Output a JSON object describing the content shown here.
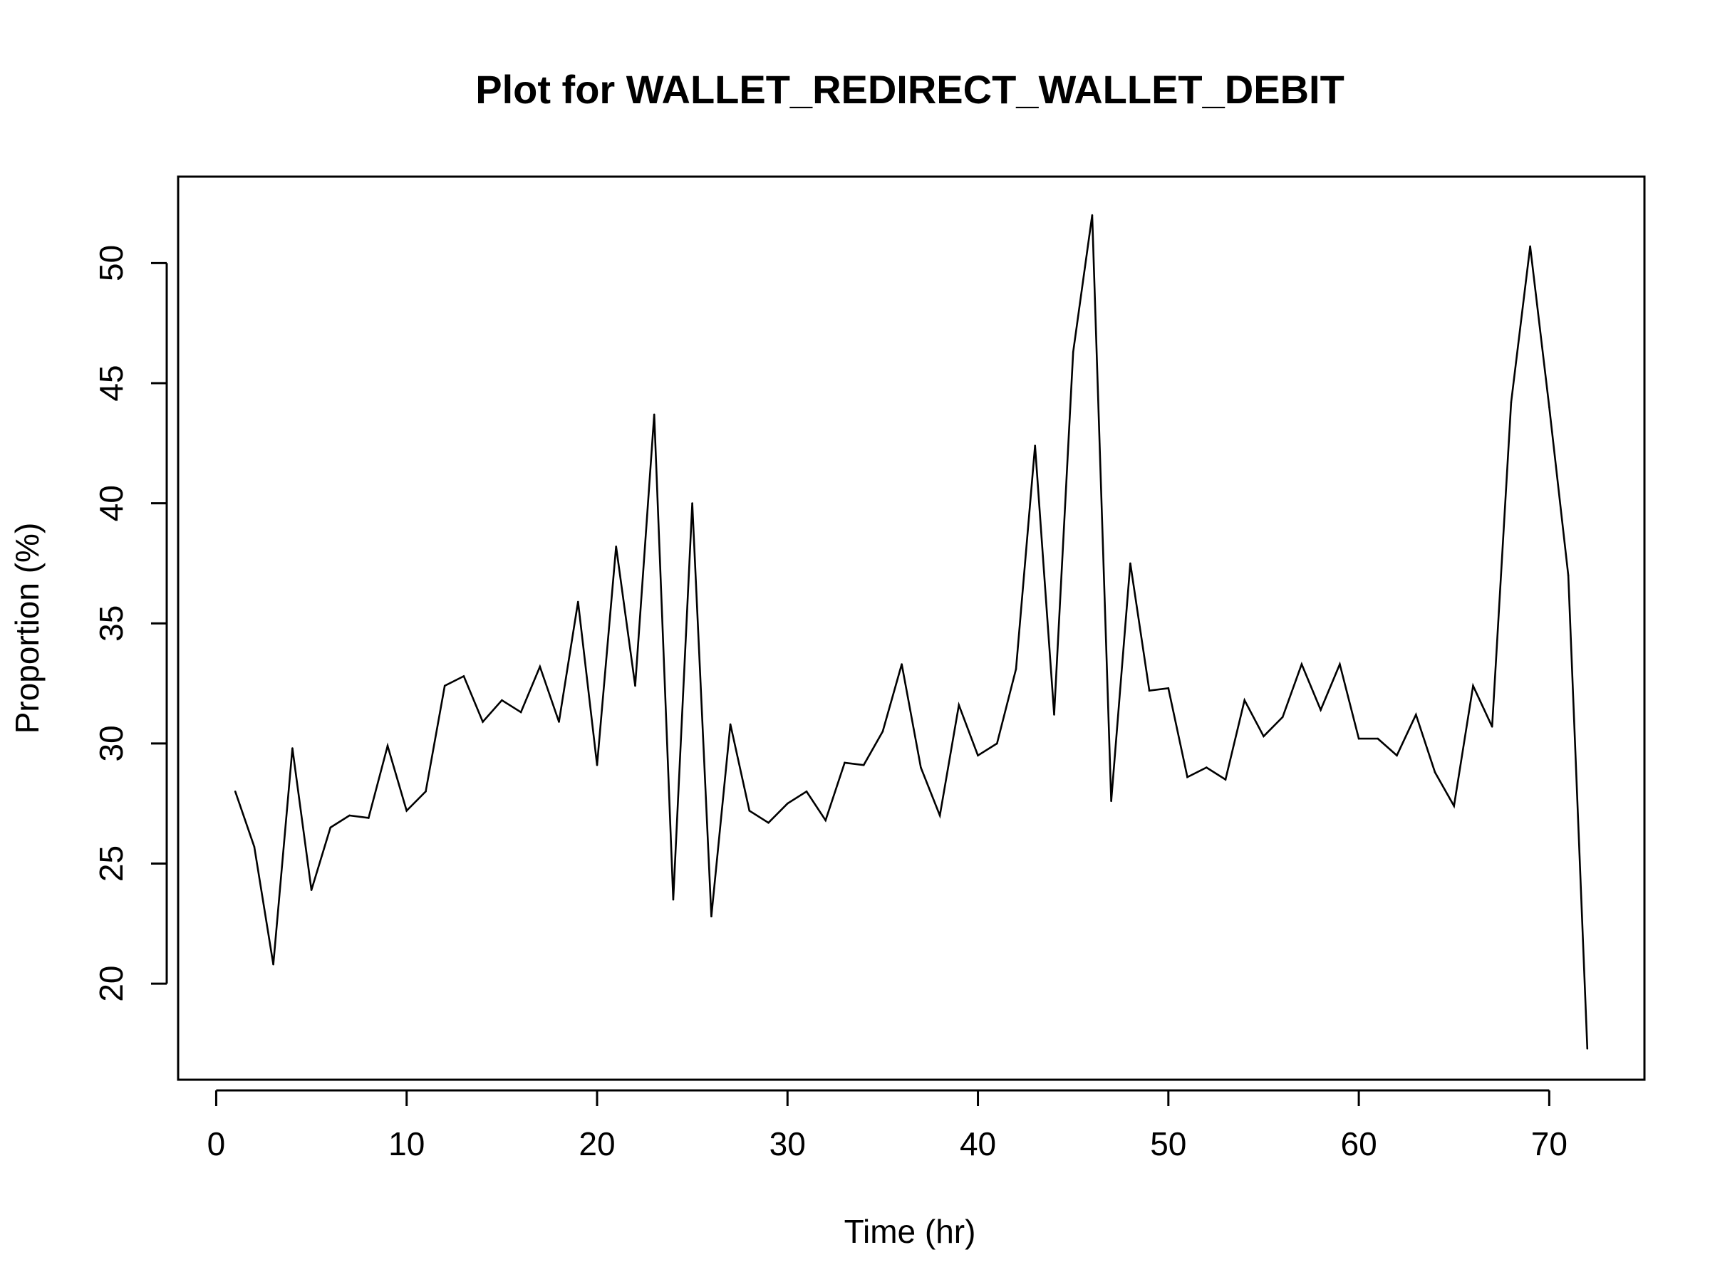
{
  "chart_data": {
    "type": "line",
    "title": "Plot for WALLET_REDIRECT_WALLET_DEBIT",
    "xlabel": "Time (hr)",
    "ylabel": "Proportion (%)",
    "xlim": [
      -2,
      75
    ],
    "ylim": [
      16,
      53.6
    ],
    "x_ticks": [
      0,
      10,
      20,
      30,
      40,
      50,
      60,
      70
    ],
    "y_ticks": [
      20,
      25,
      30,
      35,
      40,
      45,
      50
    ],
    "grid": false,
    "legend": "none",
    "line_color": "#000000",
    "x": [
      1,
      2,
      3,
      4,
      5,
      6,
      7,
      8,
      9,
      10,
      11,
      12,
      13,
      14,
      15,
      16,
      17,
      18,
      19,
      20,
      21,
      22,
      23,
      24,
      25,
      26,
      27,
      28,
      29,
      30,
      31,
      32,
      33,
      34,
      35,
      36,
      37,
      38,
      39,
      40,
      41,
      42,
      43,
      44,
      45,
      46,
      47,
      48,
      49,
      50,
      51,
      52,
      53,
      54,
      55,
      56,
      57,
      58,
      59,
      60,
      61,
      62,
      63,
      64,
      65,
      66,
      67,
      68,
      69,
      70,
      71,
      72
    ],
    "y": [
      28.0,
      25.7,
      20.8,
      29.8,
      23.9,
      26.5,
      27.0,
      26.9,
      29.9,
      27.2,
      28.0,
      32.4,
      32.8,
      30.9,
      31.8,
      31.3,
      33.2,
      30.9,
      35.9,
      29.1,
      38.2,
      32.4,
      43.7,
      23.5,
      40.0,
      22.8,
      30.8,
      27.2,
      26.7,
      27.5,
      28.0,
      26.8,
      29.2,
      29.1,
      30.5,
      33.3,
      29.0,
      27.0,
      31.6,
      29.5,
      30.0,
      33.1,
      42.4,
      31.2,
      46.3,
      52.0,
      27.6,
      37.5,
      32.2,
      32.3,
      28.6,
      29.0,
      28.5,
      31.8,
      30.3,
      31.1,
      33.3,
      31.4,
      33.3,
      30.2,
      30.2,
      29.5,
      31.2,
      28.8,
      27.4,
      32.4,
      30.7,
      44.2,
      50.7,
      44.0,
      37.0,
      17.3
    ]
  }
}
